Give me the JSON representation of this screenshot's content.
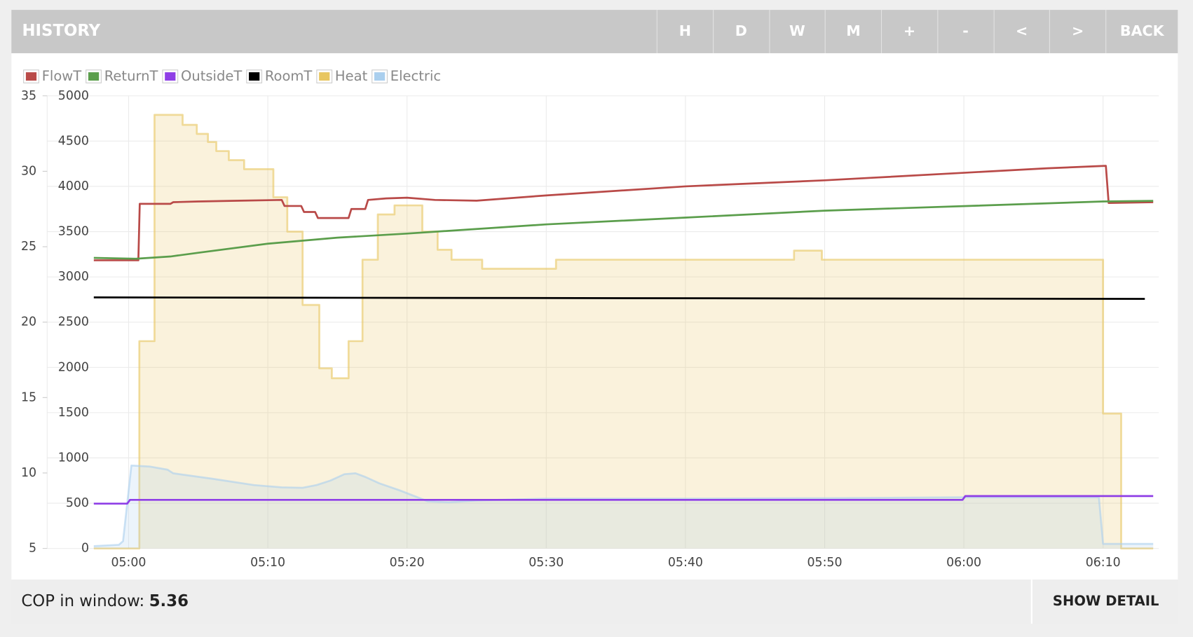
{
  "header": {
    "title": "HISTORY",
    "buttons": [
      "H",
      "D",
      "W",
      "M",
      "+",
      "-",
      "<",
      ">",
      "BACK"
    ]
  },
  "chart_data": {
    "type": "line",
    "legend": "top-left",
    "grid": true,
    "xlim": [
      294.15,
      374
    ],
    "xticks": [
      {
        "value": 300,
        "label": "05:00"
      },
      {
        "value": 310,
        "label": "05:10"
      },
      {
        "value": 320,
        "label": "05:20"
      },
      {
        "value": 330,
        "label": "05:30"
      },
      {
        "value": 340,
        "label": "05:40"
      },
      {
        "value": 350,
        "label": "05:50"
      },
      {
        "value": 360,
        "label": "06:00"
      },
      {
        "value": 370,
        "label": "06:10"
      }
    ],
    "ylim": [
      5,
      35
    ],
    "yticks": [
      5,
      10,
      15,
      20,
      25,
      30,
      35
    ],
    "y2lim": [
      0,
      5000
    ],
    "y2ticks": [
      0,
      500,
      1000,
      1500,
      2000,
      2500,
      3000,
      3500,
      4000,
      4500,
      5000
    ],
    "series": [
      {
        "name": "FlowT",
        "color": "#b94a48",
        "axis": "y",
        "area": false,
        "x": [
          297.5,
          300.7,
          300.8,
          303,
          303.2,
          305,
          308,
          311,
          311.2,
          312.4,
          312.6,
          313.4,
          313.6,
          315.8,
          316,
          317,
          317.2,
          318.5,
          320,
          322,
          325,
          330,
          340,
          350,
          360,
          366,
          370.2,
          370.4,
          373.6
        ],
        "values": [
          24.1,
          24.1,
          27.84,
          27.84,
          27.95,
          28.0,
          28.05,
          28.1,
          27.7,
          27.7,
          27.3,
          27.3,
          26.9,
          26.9,
          27.5,
          27.5,
          28.1,
          28.2,
          28.25,
          28.1,
          28.05,
          28.4,
          29.0,
          29.4,
          29.9,
          30.2,
          30.36,
          27.9,
          27.95
        ]
      },
      {
        "name": "ReturnT",
        "color": "#5b9e4c",
        "axis": "y",
        "area": false,
        "x": [
          297.5,
          300.5,
          303,
          305,
          310,
          315,
          320,
          330,
          340,
          350,
          360,
          370,
          373.6
        ],
        "values": [
          24.26,
          24.2,
          24.35,
          24.6,
          25.2,
          25.6,
          25.87,
          26.48,
          26.93,
          27.39,
          27.69,
          28.0,
          28.04
        ]
      },
      {
        "name": "OutsideT",
        "color": "#8f3fe6",
        "axis": "y",
        "area": false,
        "x": [
          297.5,
          299.9,
          300.1,
          359.9,
          360.1,
          373.6
        ],
        "values": [
          7.97,
          7.97,
          8.22,
          8.22,
          8.47,
          8.47
        ]
      },
      {
        "name": "RoomT",
        "color": "#000000",
        "axis": "y",
        "area": false,
        "x": [
          297.5,
          373
        ],
        "values": [
          21.64,
          21.54
        ]
      },
      {
        "name": "Heat",
        "color": "#e8c661",
        "axis": "y2",
        "area": true,
        "x": [
          297.5,
          300.77,
          300.77,
          301.86,
          301.86,
          303.88,
          303.88,
          304.9,
          304.9,
          305.7,
          305.7,
          306.3,
          306.3,
          307.2,
          307.2,
          308.3,
          308.3,
          310.4,
          310.4,
          311.4,
          311.4,
          312.5,
          312.5,
          313.7,
          313.7,
          314.6,
          314.6,
          315.8,
          315.8,
          316.8,
          316.8,
          317.9,
          317.9,
          319.1,
          319.1,
          321.1,
          321.1,
          322.2,
          322.2,
          323.2,
          323.2,
          325.4,
          325.4,
          330.7,
          330.7,
          347.8,
          347.8,
          349.8,
          349.8,
          370.0,
          370.0,
          371.3,
          371.3,
          373.6
        ],
        "values": [
          0,
          0,
          2290,
          2290,
          4790,
          4790,
          4680,
          4680,
          4580,
          4580,
          4490,
          4490,
          4390,
          4390,
          4290,
          4290,
          4190,
          4190,
          3880,
          3880,
          3500,
          3500,
          2690,
          2690,
          1990,
          1990,
          1880,
          1880,
          2290,
          2290,
          3190,
          3190,
          3690,
          3690,
          3790,
          3790,
          3500,
          3500,
          3300,
          3300,
          3190,
          3190,
          3090,
          3090,
          3190,
          3190,
          3290,
          3290,
          3190,
          3190,
          1490,
          1490,
          0,
          0
        ]
      },
      {
        "name": "Electric",
        "color": "#aacfee",
        "axis": "y2",
        "area": true,
        "x": [
          297.5,
          299.3,
          299.6,
          300.2,
          301.5,
          302.8,
          303.2,
          306,
          309,
          311,
          312.5,
          313.5,
          314.5,
          315.5,
          316.3,
          317,
          318,
          319.5,
          321.5,
          323,
          325,
          330,
          340,
          350,
          360,
          369.7,
          370,
          373.6
        ],
        "values": [
          25,
          40,
          80,
          916,
          905,
          870,
          830,
          770,
          700,
          675,
          670,
          700,
          750,
          820,
          830,
          790,
          720,
          640,
          520,
          510,
          530,
          550,
          550,
          555,
          565,
          565,
          50,
          50
        ]
      }
    ]
  },
  "footer": {
    "cop_label": "COP in window:",
    "cop_value": 5.36,
    "button": "SHOW DETAIL"
  }
}
